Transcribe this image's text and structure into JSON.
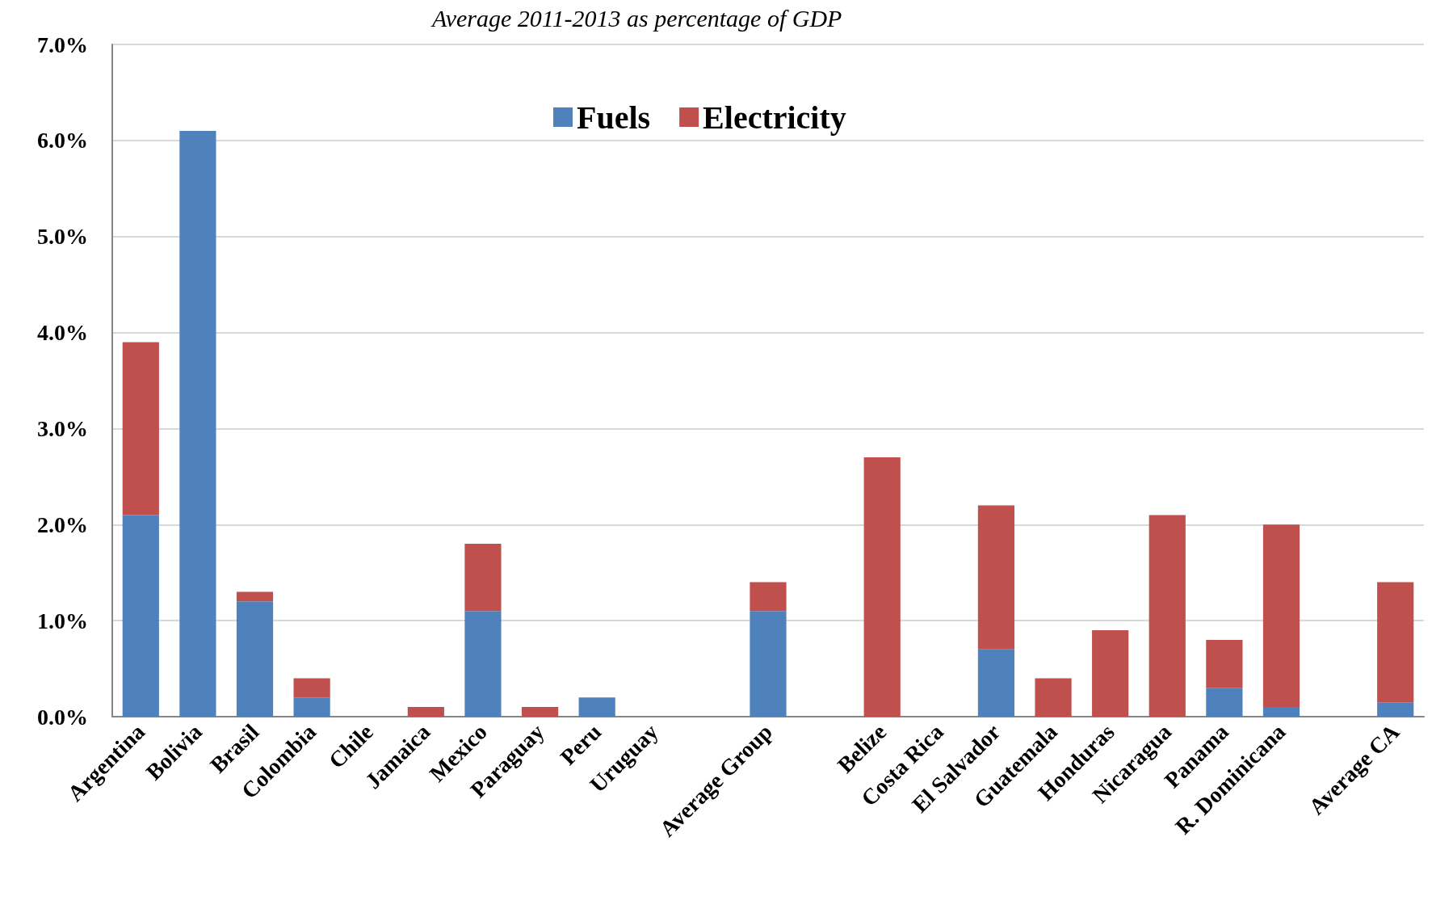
{
  "chart_data": {
    "type": "bar",
    "title": "Average 2011-2013 as percentage of GDP",
    "categories": [
      "Argentina",
      "Bolivia",
      "Brasil",
      "Colombia",
      "Chile",
      "Jamaica",
      "Mexico",
      "Paraguay",
      "Peru",
      "Uruguay",
      null,
      "Average Group",
      null,
      "Belize",
      "Costa Rica",
      "El Salvador",
      "Guatemala",
      "Honduras",
      "Nicaragua",
      "Panama",
      "R. Dominicana",
      null,
      "Average CA"
    ],
    "series": [
      {
        "name": "Fuels",
        "color": "#4f81bd",
        "values": [
          2.1,
          6.1,
          1.2,
          0.2,
          0,
          0,
          1.1,
          0,
          0.2,
          0,
          null,
          1.1,
          null,
          0,
          0,
          0.7,
          0,
          0,
          0,
          0.3,
          0.1,
          null,
          0.15
        ]
      },
      {
        "name": "Electricity",
        "color": "#c0504d",
        "values": [
          1.8,
          0,
          0.1,
          0.2,
          0,
          0.1,
          0.7,
          0.1,
          0,
          0,
          null,
          0.3,
          null,
          2.7,
          0,
          1.5,
          0.4,
          0.9,
          2.1,
          0.5,
          1.9,
          null,
          1.25
        ]
      }
    ],
    "stacked": true,
    "ylim": [
      0,
      7
    ],
    "yticks": [
      {
        "value": 0,
        "label": "0.0%"
      },
      {
        "value": 1,
        "label": "1.0%"
      },
      {
        "value": 2,
        "label": "2.0%"
      },
      {
        "value": 3,
        "label": "3.0%"
      },
      {
        "value": 4,
        "label": "4.0%"
      },
      {
        "value": 5,
        "label": "5.0%"
      },
      {
        "value": 6,
        "label": "6.0%"
      },
      {
        "value": 7,
        "label": "7.0%"
      }
    ],
    "grid": "y",
    "legend": "top"
  }
}
